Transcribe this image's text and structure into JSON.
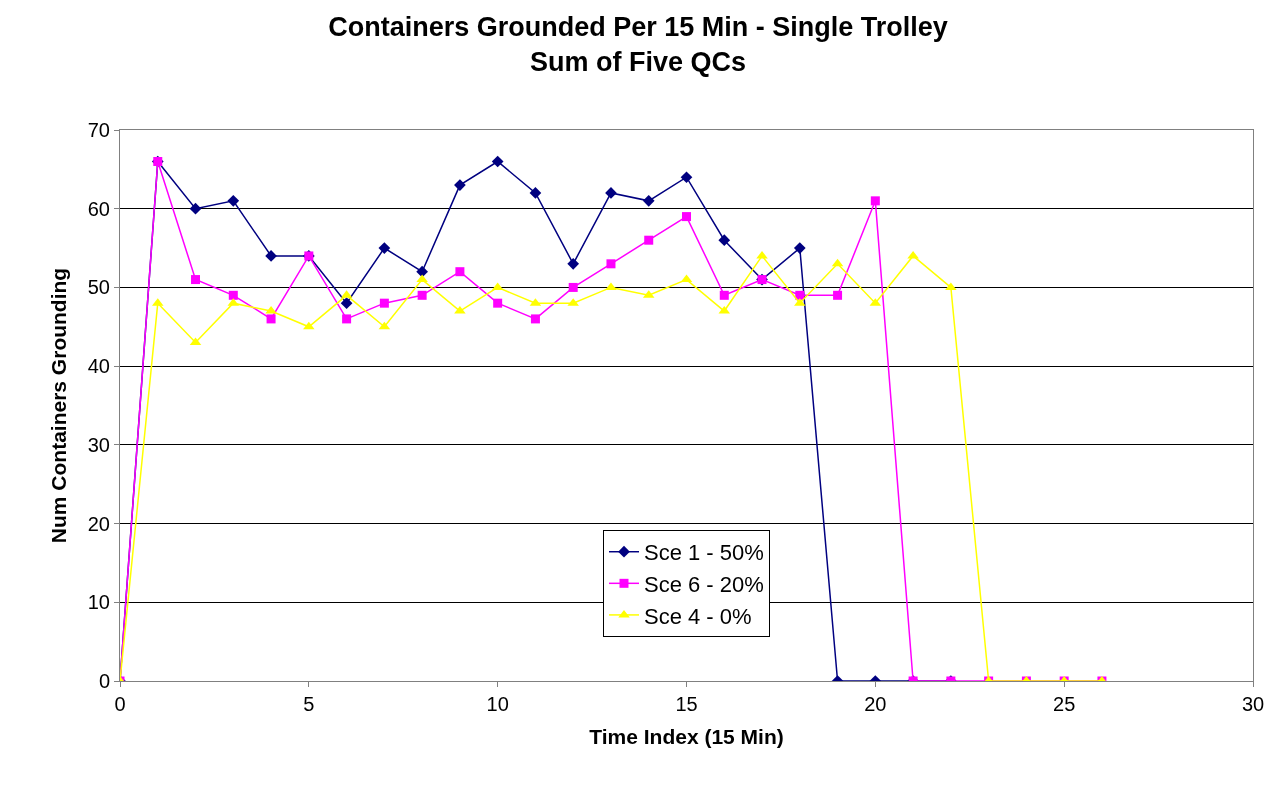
{
  "chart_data": {
    "type": "line",
    "title": "Containers Grounded Per 15 Min - Single Trolley\nSum of Five QCs",
    "xlabel": "Time Index (15 Min)",
    "ylabel": "Num Containers Grounding",
    "x": [
      0,
      1,
      2,
      3,
      4,
      5,
      6,
      7,
      8,
      9,
      10,
      11,
      12,
      13,
      14,
      15,
      16,
      17,
      18,
      19,
      20,
      21,
      22,
      23,
      24,
      25,
      26
    ],
    "series": [
      {
        "name": "Sce 1 - 50%",
        "color": "#000080",
        "marker": "diamond",
        "values": [
          0,
          66,
          60,
          61,
          54,
          54,
          48,
          55,
          52,
          63,
          66,
          62,
          53,
          62,
          61,
          64,
          56,
          51,
          55,
          0,
          0,
          0,
          0,
          null,
          null,
          null,
          null
        ]
      },
      {
        "name": "Sce 6 - 20%",
        "color": "#ff00ff",
        "marker": "square",
        "values": [
          0,
          66,
          51,
          49,
          46,
          54,
          46,
          48,
          49,
          52,
          48,
          46,
          50,
          53,
          56,
          59,
          49,
          51,
          49,
          49,
          61,
          0,
          0,
          0,
          0,
          0,
          0
        ]
      },
      {
        "name": "Sce 4 - 0%",
        "color": "#ffff00",
        "marker": "triangle",
        "values": [
          0,
          48,
          43,
          48,
          47,
          45,
          49,
          45,
          51,
          47,
          50,
          48,
          48,
          50,
          49,
          51,
          47,
          54,
          48,
          53,
          48,
          54,
          50,
          0,
          0,
          0,
          0
        ]
      }
    ],
    "xlim": [
      0,
      30
    ],
    "xticks": [
      0,
      5,
      10,
      15,
      20,
      25,
      30
    ],
    "ylim": [
      0,
      70
    ],
    "yticks": [
      0,
      10,
      20,
      30,
      40,
      50,
      60,
      70
    ],
    "grid": "y",
    "legend": "bottom",
    "line_style": "solid"
  }
}
